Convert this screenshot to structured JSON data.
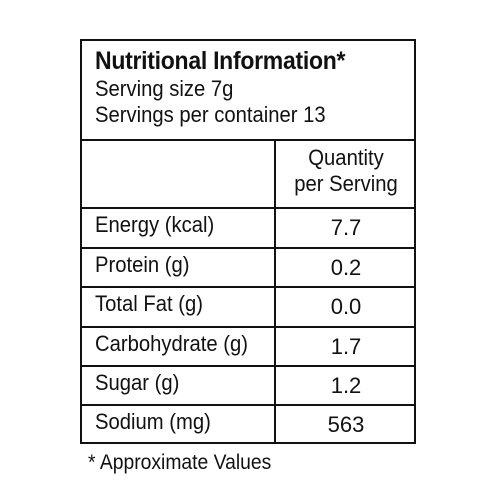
{
  "label": {
    "title": "Nutritional Information*",
    "serving_size": "Serving size 7g",
    "servings_per_container": "Servings per container 13",
    "column_header_line1": "Quantity",
    "column_header_line2": "per Serving",
    "rows": [
      {
        "nutrient": "Energy (kcal)",
        "amount": "7.7"
      },
      {
        "nutrient": "Protein (g)",
        "amount": "0.2"
      },
      {
        "nutrient": "Total Fat (g)",
        "amount": "0.0"
      },
      {
        "nutrient": "Carbohydrate (g)",
        "amount": "1.7"
      },
      {
        "nutrient": "Sugar (g)",
        "amount": "1.2"
      },
      {
        "nutrient": "Sodium (mg)",
        "amount": "563"
      }
    ],
    "footnote": "* Approximate Values"
  }
}
